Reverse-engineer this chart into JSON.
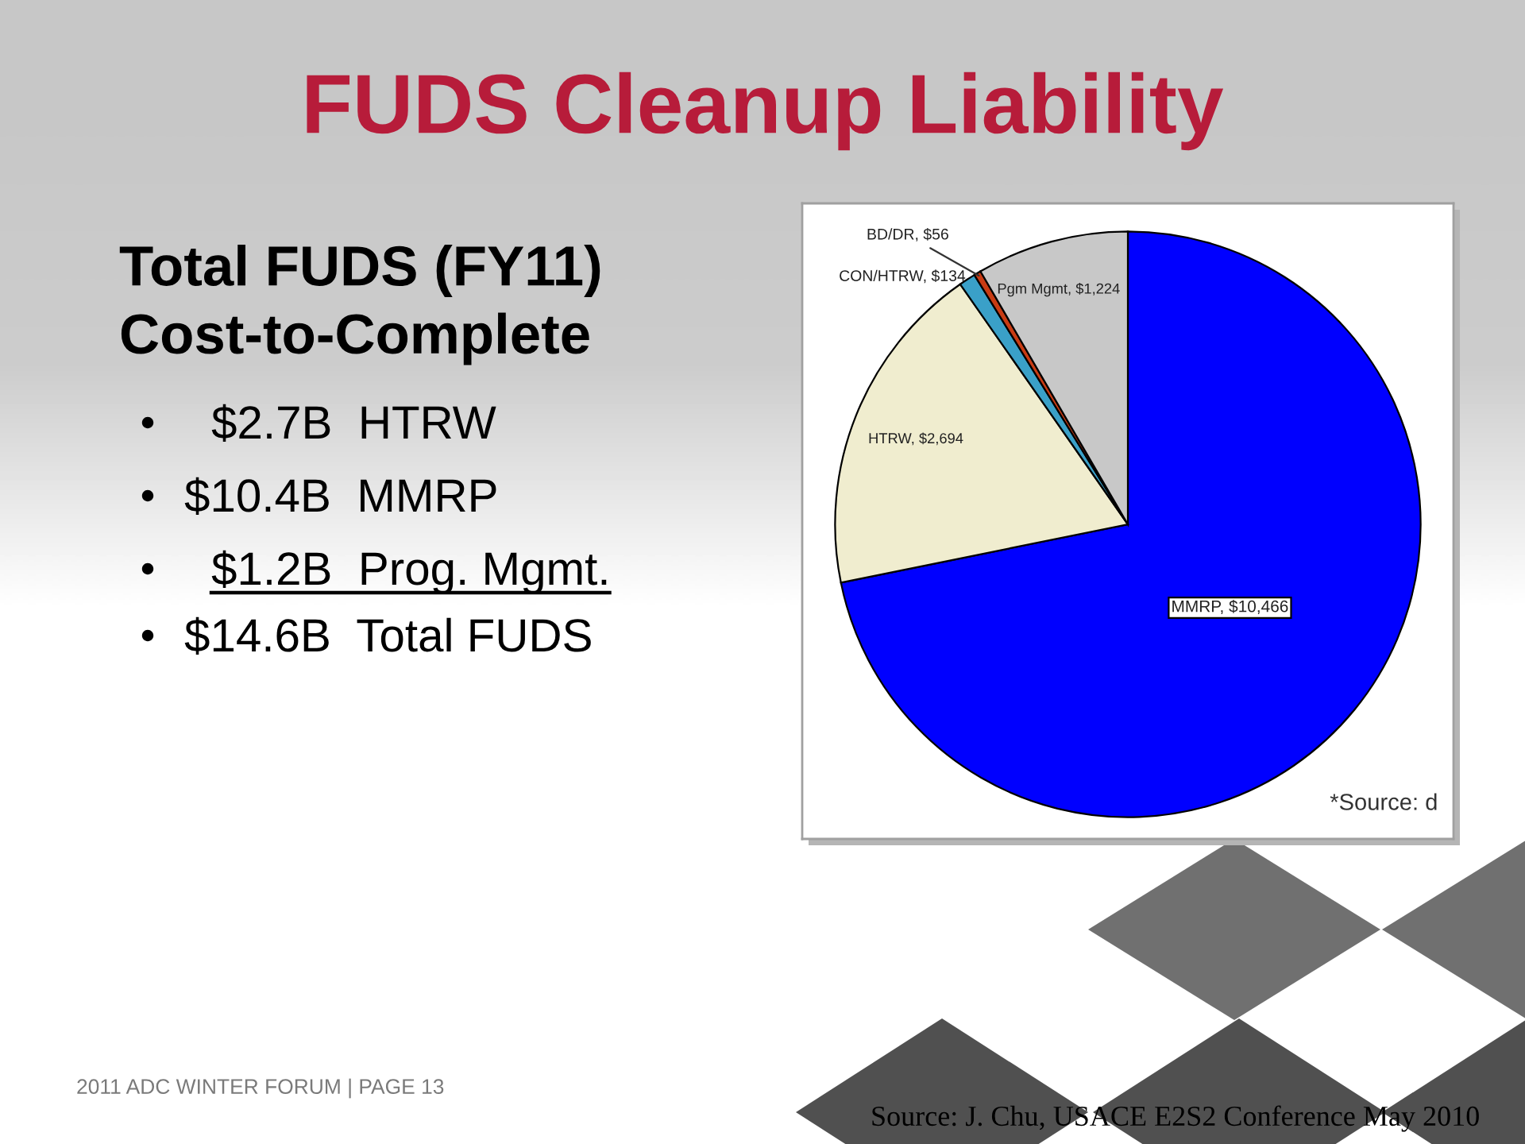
{
  "chart_data": {
    "type": "pie",
    "title": "FUDS Cleanup Liability",
    "subtitle": "Total FUDS (FY11)\nCost-to-Complete",
    "categories": [
      "MMRP",
      "HTRW",
      "CON/HTRW",
      "BD/DR",
      "Pgm Mgmt"
    ],
    "values": [
      10466,
      2694,
      134,
      56,
      1224
    ],
    "colors": [
      "#0000ff",
      "#f0edcf",
      "#3aa0c8",
      "#c83c14",
      "#c8c8c8"
    ],
    "value_labels": [
      "$10,466",
      "$2,694",
      "$134",
      "$56",
      "$1,224"
    ],
    "annotations": [
      "$2.7B  HTRW",
      "$10.4B  MMRP",
      "$1.2B  Prog. Mgmt.",
      "$14.6B  Total FUDS",
      "*Source: d",
      "2011 ADC WINTER FORUM | PAGE 13",
      "Source: J. Chu, USACE E2S2 Conference May 2010"
    ]
  }
}
